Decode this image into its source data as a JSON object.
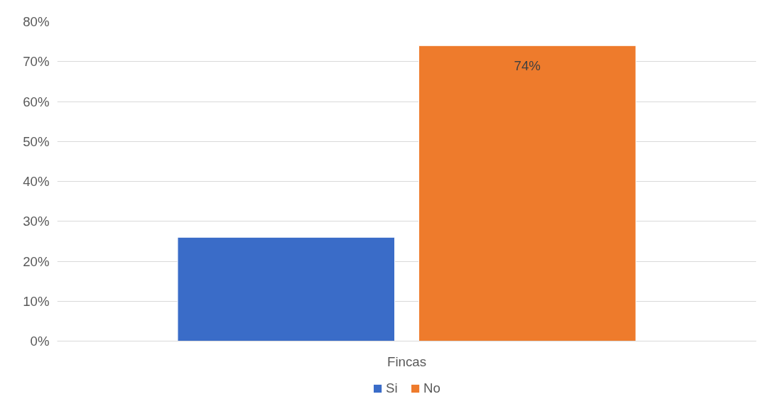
{
  "chart_data": {
    "type": "bar",
    "categories": [
      "Fincas"
    ],
    "series": [
      {
        "name": "Si",
        "color": "#3a6cc8",
        "values": [
          26
        ],
        "value_labels": [
          null
        ]
      },
      {
        "name": "No",
        "color": "#ee7b2c",
        "values": [
          74
        ],
        "value_labels": [
          "74%"
        ]
      }
    ],
    "ylim": [
      0,
      80
    ],
    "yticks": [
      {
        "value": 0,
        "label": "0%"
      },
      {
        "value": 10,
        "label": "10%"
      },
      {
        "value": 20,
        "label": "20%"
      },
      {
        "value": 30,
        "label": "30%"
      },
      {
        "value": 40,
        "label": "40%"
      },
      {
        "value": 50,
        "label": "50%"
      },
      {
        "value": 60,
        "label": "60%"
      },
      {
        "value": 70,
        "label": "70%"
      },
      {
        "value": 80,
        "label": "80%"
      }
    ],
    "grid": "y",
    "legend": "bottom"
  }
}
